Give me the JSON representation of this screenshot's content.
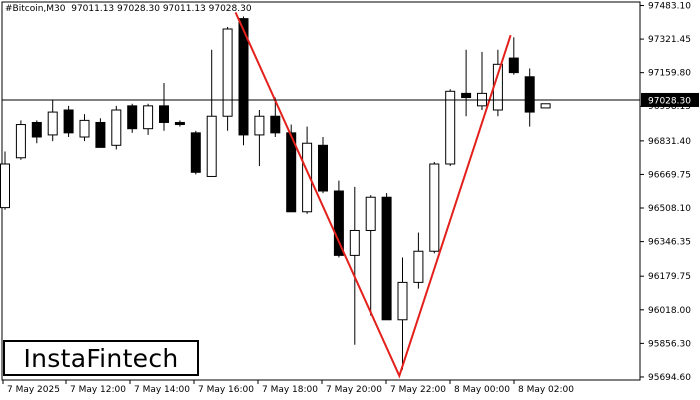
{
  "header": {
    "symbol_tf": "#Bitcoin,M30",
    "ohlc": "97011.13 97028.30 97011.13 97028.30"
  },
  "logo": {
    "text": "InstaFintech"
  },
  "colors": {
    "bull": "#ffffff",
    "bear": "#000000",
    "pattern": "#e3201b",
    "grid": "#000000",
    "text": "#000000"
  },
  "chart_data": {
    "type": "candlestick",
    "y_ticks": [
      "97483.10",
      "97321.45",
      "97159.80",
      "96998.15",
      "96831.40",
      "96669.75",
      "96508.10",
      "96346.35",
      "96179.75",
      "96018.00",
      "95856.30",
      "95694.60"
    ],
    "y_tick_values": [
      97483.1,
      97321.45,
      97159.8,
      96998.15,
      96831.4,
      96669.75,
      96508.1,
      96346.35,
      96179.75,
      96018.0,
      95856.3,
      95694.6
    ],
    "ylim": [
      95680,
      97500
    ],
    "x_ticks": [
      "7 May 2025",
      "7 May 12:00",
      "7 May 14:00",
      "7 May 16:00",
      "7 May 18:00",
      "7 May 20:00",
      "7 May 22:00",
      "8 May 00:00",
      "8 May 02:00"
    ],
    "current_price": "97028.30",
    "current_price_value": 97028.3,
    "candles": [
      {
        "o": 96510,
        "h": 96780,
        "l": 96500,
        "c": 96720
      },
      {
        "o": 96750,
        "h": 96930,
        "l": 96740,
        "c": 96910
      },
      {
        "o": 96920,
        "h": 96930,
        "l": 96820,
        "c": 96850
      },
      {
        "o": 96860,
        "h": 97030,
        "l": 96830,
        "c": 96970
      },
      {
        "o": 96980,
        "h": 97000,
        "l": 96850,
        "c": 96870
      },
      {
        "o": 96850,
        "h": 96960,
        "l": 96830,
        "c": 96930
      },
      {
        "o": 96920,
        "h": 96940,
        "l": 96800,
        "c": 96800
      },
      {
        "o": 96810,
        "h": 97000,
        "l": 96790,
        "c": 96980
      },
      {
        "o": 97000,
        "h": 97010,
        "l": 96870,
        "c": 96890
      },
      {
        "o": 96890,
        "h": 97010,
        "l": 96860,
        "c": 97000
      },
      {
        "o": 97000,
        "h": 97110,
        "l": 96880,
        "c": 96920
      },
      {
        "o": 96920,
        "h": 96930,
        "l": 96900,
        "c": 96910
      },
      {
        "o": 96870,
        "h": 96880,
        "l": 96670,
        "c": 96680
      },
      {
        "o": 96660,
        "h": 97270,
        "l": 96660,
        "c": 96950
      },
      {
        "o": 96950,
        "h": 97380,
        "l": 96880,
        "c": 97370
      },
      {
        "o": 97420,
        "h": 97430,
        "l": 96810,
        "c": 96860
      },
      {
        "o": 96860,
        "h": 96980,
        "l": 96710,
        "c": 96950
      },
      {
        "o": 96950,
        "h": 97040,
        "l": 96850,
        "c": 96870
      },
      {
        "o": 96870,
        "h": 96910,
        "l": 96490,
        "c": 96490
      },
      {
        "o": 96490,
        "h": 96900,
        "l": 96480,
        "c": 96820
      },
      {
        "o": 96810,
        "h": 96850,
        "l": 96580,
        "c": 96590
      },
      {
        "o": 96590,
        "h": 96640,
        "l": 96270,
        "c": 96280
      },
      {
        "o": 96280,
        "h": 96610,
        "l": 95850,
        "c": 96400
      },
      {
        "o": 96400,
        "h": 96570,
        "l": 95990,
        "c": 96560
      },
      {
        "o": 96560,
        "h": 96580,
        "l": 95980,
        "c": 95970
      },
      {
        "o": 95970,
        "h": 96270,
        "l": 95730,
        "c": 96150
      },
      {
        "o": 96150,
        "h": 96390,
        "l": 96120,
        "c": 96300
      },
      {
        "o": 96300,
        "h": 96730,
        "l": 96290,
        "c": 96720
      },
      {
        "o": 96720,
        "h": 97080,
        "l": 96710,
        "c": 97070
      },
      {
        "o": 97060,
        "h": 97270,
        "l": 96950,
        "c": 97040
      },
      {
        "o": 97000,
        "h": 97260,
        "l": 96980,
        "c": 97060
      },
      {
        "o": 96980,
        "h": 97270,
        "l": 96950,
        "c": 97200
      },
      {
        "o": 97230,
        "h": 97330,
        "l": 97150,
        "c": 97160
      },
      {
        "o": 97140,
        "h": 97180,
        "l": 96900,
        "c": 96970
      },
      {
        "o": 96990,
        "h": 97010,
        "l": 96990,
        "c": 97010
      }
    ],
    "pattern_points": [
      {
        "candle": 14.5,
        "price": 97450
      },
      {
        "candle": 24.8,
        "price": 95700
      },
      {
        "candle": 31.8,
        "price": 97340
      }
    ],
    "grid": false,
    "legend": "none"
  }
}
